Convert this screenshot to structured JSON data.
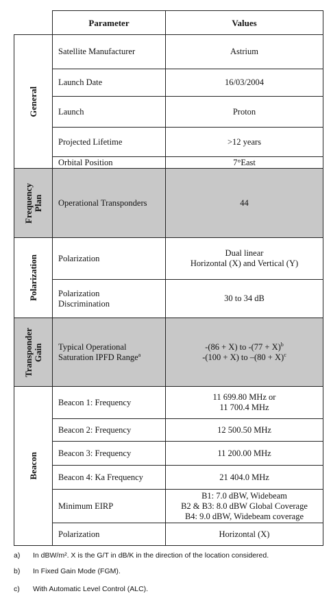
{
  "table": {
    "header": [
      "Parameter",
      "Values"
    ],
    "groups": [
      {
        "label": [
          "General"
        ],
        "shaded": false,
        "rows": [
          {
            "parameter": [
              "Satellite Manufacturer"
            ],
            "value": [
              "Astrium"
            ]
          },
          {
            "parameter": [
              "Launch Date"
            ],
            "value": [
              "16/03/2004"
            ]
          },
          {
            "parameter": [
              "Launch"
            ],
            "value": [
              "Proton"
            ]
          },
          {
            "parameter": [
              "Projected Lifetime"
            ],
            "value": [
              ">12 years"
            ]
          },
          {
            "parameter": [
              "Orbital Position"
            ],
            "value": [
              "7°East"
            ]
          }
        ]
      },
      {
        "label": [
          "Frequency",
          "Plan"
        ],
        "shaded": true,
        "rows": [
          {
            "parameter": [
              "Operational Transponders"
            ],
            "value": [
              "44"
            ]
          }
        ]
      },
      {
        "label": [
          "Polarization"
        ],
        "shaded": false,
        "rows": [
          {
            "parameter": [
              "Polarization"
            ],
            "value": [
              "Dual linear",
              "Horizontal (X) and Vertical (Y)"
            ]
          },
          {
            "parameter": [
              "Polarization",
              "Discrimination"
            ],
            "value": [
              "30  to 34 dB"
            ]
          }
        ]
      },
      {
        "label": [
          "Transponder",
          "Gain"
        ],
        "shaded": true,
        "rows": [
          {
            "parameter": [
              "Typical Operational",
              {
                "text": "Saturation IPFD Range",
                "note": "a"
              }
            ],
            "value": [
              {
                "text": "-(86 + X) to -(77 + X)",
                "note": "b"
              },
              {
                "text": "-(100 + X) to –(80 + X)",
                "note": "c"
              }
            ]
          }
        ]
      },
      {
        "label": [
          "Beacon"
        ],
        "shaded": false,
        "rows": [
          {
            "parameter": [
              "Beacon 1: Frequency"
            ],
            "value": [
              "11 699.80 MHz or",
              "11 700.4 MHz"
            ]
          },
          {
            "parameter": [
              "Beacon 2: Frequency"
            ],
            "value": [
              "12 500.50 MHz"
            ]
          },
          {
            "parameter": [
              "Beacon 3: Frequency"
            ],
            "value": [
              "11 200.00 MHz"
            ]
          },
          {
            "parameter": [
              "Beacon 4: Ka Frequency"
            ],
            "value": [
              "21 404.0 MHz"
            ]
          },
          {
            "parameter": [
              "Minimum EIRP"
            ],
            "value": [
              "B1: 7.0 dBW, Widebeam",
              "B2 & B3: 8.0 dBW Global Coverage",
              "B4: 9.0 dBW, Widebeam coverage"
            ]
          },
          {
            "parameter": [
              "Polarization"
            ],
            "value": [
              "Horizontal (X)"
            ]
          }
        ]
      }
    ]
  },
  "footnotes": [
    {
      "marker": "a)",
      "text": "In dBW/m². X is the G/T in dB/K in the direction of the location considered."
    },
    {
      "marker": "b)",
      "text": "In Fixed Gain Mode (FGM)."
    },
    {
      "marker": "c)",
      "text": "With Automatic Level Control (ALC)."
    }
  ]
}
